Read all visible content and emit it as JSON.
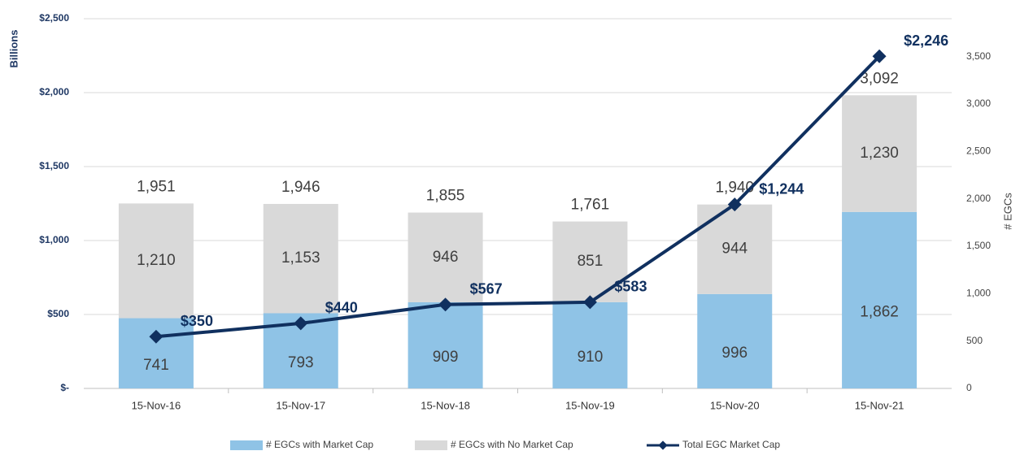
{
  "chart_data": {
    "type": "bar",
    "stacked": true,
    "categories": [
      "15-Nov-16",
      "15-Nov-17",
      "15-Nov-18",
      "15-Nov-19",
      "15-Nov-20",
      "15-Nov-21"
    ],
    "series": [
      {
        "name": "# EGCs with Market Cap",
        "color": "#8fc3e6",
        "axis": "y2",
        "values": [
          741,
          793,
          909,
          910,
          996,
          1862
        ],
        "value_labels": [
          "741",
          "793",
          "909",
          "910",
          "996",
          "1,862"
        ]
      },
      {
        "name": "# EGCs with No Market Cap",
        "color": "#d9d9d9",
        "axis": "y2",
        "values": [
          1210,
          1153,
          946,
          851,
          944,
          1230
        ],
        "value_labels": [
          "1,210",
          "1,153",
          "946",
          "851",
          "944",
          "1,230"
        ]
      },
      {
        "name": "Total EGC Market Cap",
        "type": "line",
        "color": "#10305f",
        "axis": "y",
        "values": [
          350,
          440,
          567,
          583,
          1244,
          2246
        ],
        "value_labels": [
          "$350",
          "$440",
          "$567",
          "$583",
          "$1,244",
          "$2,246"
        ]
      }
    ],
    "totals": {
      "values": [
        1951,
        1946,
        1855,
        1761,
        1940,
        3092
      ],
      "value_labels": [
        "1,951",
        "1,946",
        "1,855",
        "1,761",
        "1,940",
        "3,092"
      ]
    },
    "ylabel": "Billions",
    "y2label": "# EGCs",
    "ylim": [
      0,
      2500
    ],
    "yticks": [
      {
        "value": 0,
        "label": "$-"
      },
      {
        "value": 500,
        "label": "$500"
      },
      {
        "value": 1000,
        "label": "$1,000"
      },
      {
        "value": 1500,
        "label": "$1,500"
      },
      {
        "value": 2000,
        "label": "$2,000"
      },
      {
        "value": 2500,
        "label": "$2,500"
      }
    ],
    "y2lim": [
      0,
      3900
    ],
    "y2ticks": [
      0,
      500,
      {
        "value": 1000,
        "label": "1,000"
      },
      {
        "value": 1500,
        "label": "1,500"
      },
      {
        "value": 2000,
        "label": "2,000"
      },
      {
        "value": 2500,
        "label": "2,500"
      },
      {
        "value": 3000,
        "label": "3,000"
      },
      {
        "value": 3500,
        "label": "3,500"
      }
    ],
    "grid": true,
    "legend": "bottom"
  }
}
